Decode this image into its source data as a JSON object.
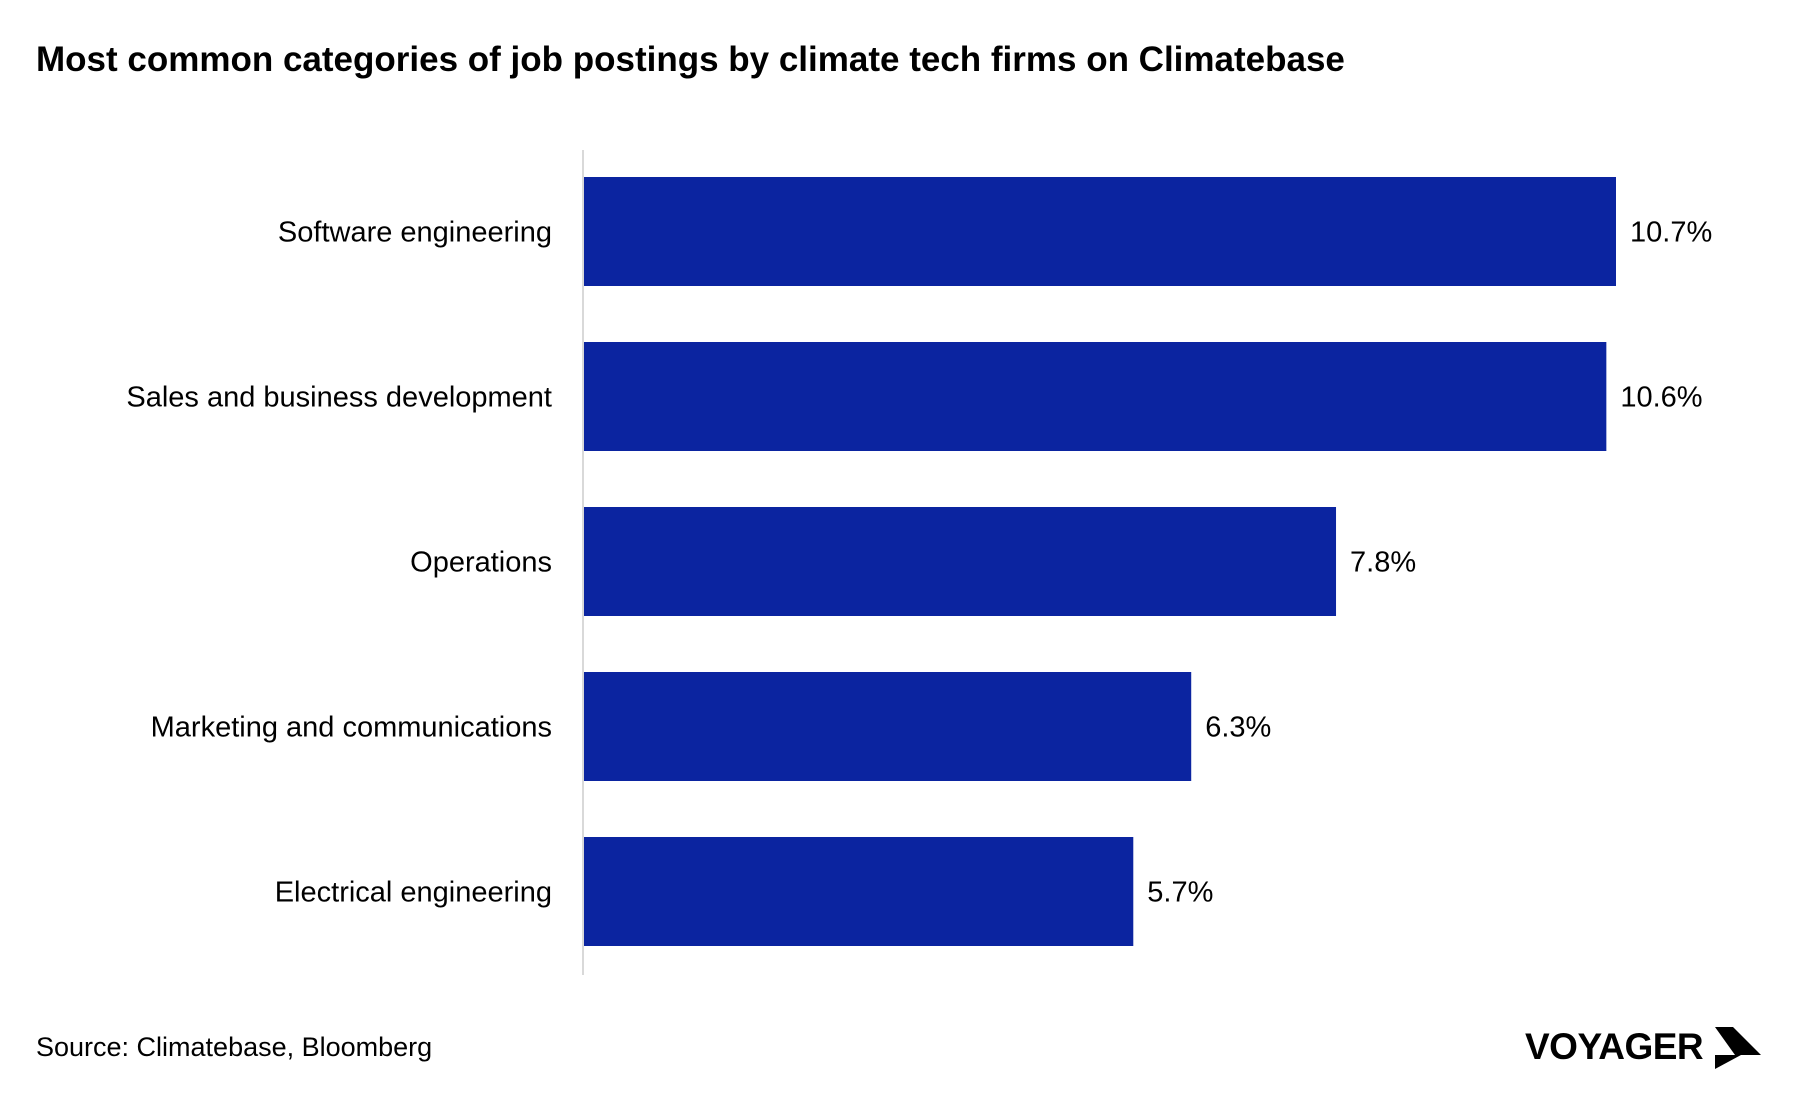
{
  "title": "Most common categories of job postings by climate tech firms on Climatebase",
  "source": "Source: Climatebase, Bloomberg",
  "logo": "VOYAGER",
  "colors": {
    "bar": "#0b24a0",
    "axis": "#d9d9d9"
  },
  "chart_data": {
    "type": "bar",
    "orientation": "horizontal",
    "title": "Most common categories of job postings by climate tech firms on Climatebase",
    "categories": [
      "Software engineering",
      "Sales and business development",
      "Operations",
      "Marketing and communications",
      "Electrical engineering"
    ],
    "values": [
      10.7,
      10.6,
      7.8,
      6.3,
      5.7
    ],
    "labels": [
      "10.7%",
      "10.6%",
      "7.8%",
      "6.3%",
      "5.7%"
    ],
    "xlim": [
      0,
      10.7
    ],
    "grid": false
  }
}
